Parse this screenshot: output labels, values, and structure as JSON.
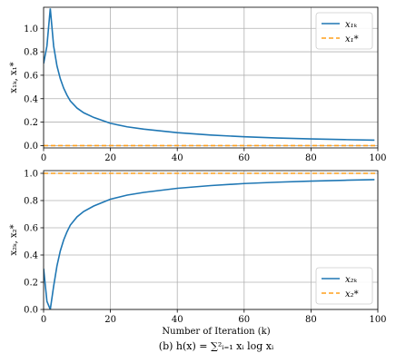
{
  "figure": {
    "xlabel": "Number of Iteration (k)",
    "caption": "(b) h(x) = ∑²ᵢ₌₁ xᵢ log xᵢ"
  },
  "chart_data": [
    {
      "type": "line",
      "ylabel": "x₁ₖ, x₁*",
      "xlim": [
        0,
        100
      ],
      "ylim": [
        -0.02,
        1.18
      ],
      "xticks": [
        0,
        20,
        40,
        60,
        80,
        100
      ],
      "yticks": [
        0.0,
        0.2,
        0.4,
        0.6,
        0.8,
        1.0
      ],
      "ytick_labels": [
        "0.0",
        "0.2",
        "0.4",
        "0.6",
        "0.8",
        "1.0"
      ],
      "grid": true,
      "legend_position": "top-right",
      "series": [
        {
          "name": "x₁ₖ",
          "color": "#1f77b4",
          "style": "solid",
          "x": [
            0,
            1,
            2,
            3,
            4,
            5,
            6,
            7,
            8,
            10,
            12,
            15,
            20,
            25,
            30,
            40,
            50,
            60,
            70,
            80,
            90,
            99
          ],
          "y": [
            0.7,
            0.85,
            1.17,
            0.85,
            0.68,
            0.57,
            0.49,
            0.43,
            0.38,
            0.32,
            0.28,
            0.24,
            0.19,
            0.16,
            0.14,
            0.11,
            0.09,
            0.075,
            0.065,
            0.057,
            0.051,
            0.046
          ]
        },
        {
          "name": "x₁*",
          "color": "#ff9f1c",
          "style": "dashed",
          "x": [
            0,
            100
          ],
          "y": [
            0.0,
            0.0
          ]
        }
      ]
    },
    {
      "type": "line",
      "ylabel": "x₂ₖ, x₂*",
      "xlim": [
        0,
        100
      ],
      "ylim": [
        0.0,
        1.02
      ],
      "xticks": [
        0,
        20,
        40,
        60,
        80,
        100
      ],
      "yticks": [
        0.0,
        0.2,
        0.4,
        0.6,
        0.8,
        1.0
      ],
      "ytick_labels": [
        "0.0",
        "0.2",
        "0.4",
        "0.6",
        "0.8",
        "1.0"
      ],
      "grid": true,
      "legend_position": "bottom-right",
      "series": [
        {
          "name": "x₂ₖ",
          "color": "#1f77b4",
          "style": "solid",
          "x": [
            0,
            1,
            2,
            3,
            4,
            5,
            6,
            7,
            8,
            10,
            12,
            15,
            20,
            25,
            30,
            40,
            50,
            60,
            70,
            80,
            90,
            99
          ],
          "y": [
            0.3,
            0.06,
            0.0,
            0.17,
            0.32,
            0.43,
            0.51,
            0.57,
            0.62,
            0.68,
            0.72,
            0.76,
            0.81,
            0.84,
            0.86,
            0.89,
            0.91,
            0.925,
            0.935,
            0.943,
            0.949,
            0.954
          ]
        },
        {
          "name": "x₂*",
          "color": "#ff9f1c",
          "style": "dashed",
          "x": [
            0,
            100
          ],
          "y": [
            1.0,
            1.0
          ]
        }
      ]
    }
  ]
}
